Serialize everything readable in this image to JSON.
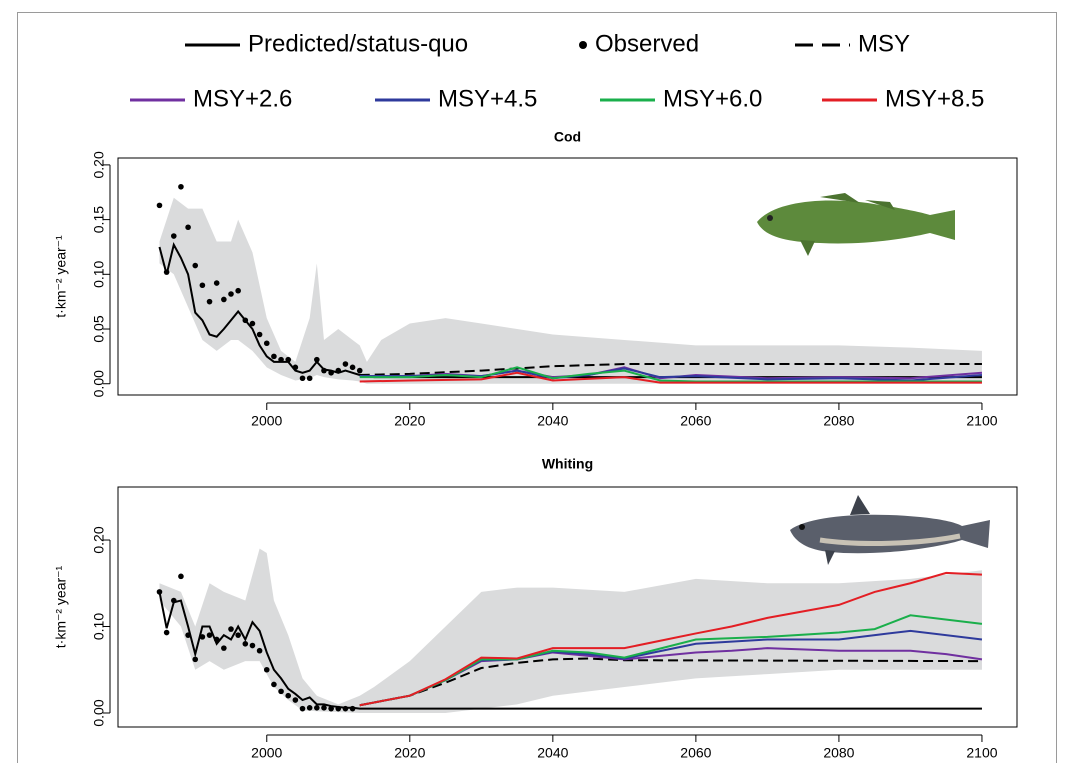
{
  "chart_data": [
    {
      "type": "line",
      "title": "Cod",
      "ylabel": "t·km⁻² year⁻¹",
      "xlim": [
        1979.2,
        2104.9
      ],
      "xticks": [
        2000,
        2020,
        2040,
        2060,
        2080,
        2100
      ],
      "ylim": [
        -0.0103,
        0.2063
      ],
      "yticks": [
        {
          "value": 0,
          "label": "0.00"
        },
        {
          "value": 0.05,
          "label": "0.05"
        },
        {
          "value": 0.1,
          "label": "0.10"
        },
        {
          "value": 0.15,
          "label": "0.15"
        },
        {
          "value": 0.2,
          "label": "0.20"
        }
      ],
      "band": {
        "color": "#dadbdc",
        "x": [
          1985,
          1987,
          1989,
          1991,
          1993,
          1995,
          1996,
          1998,
          2000,
          2002,
          2004,
          2006,
          2007,
          2008,
          2010,
          2012,
          2013,
          2014,
          2016,
          2020,
          2025,
          2030,
          2035,
          2040,
          2050,
          2060,
          2070,
          2080,
          2090,
          2100
        ],
        "upper": [
          0.13,
          0.17,
          0.16,
          0.16,
          0.13,
          0.13,
          0.15,
          0.12,
          0.06,
          0.03,
          0.02,
          0.06,
          0.11,
          0.04,
          0.05,
          0.04,
          0.035,
          0.02,
          0.04,
          0.055,
          0.06,
          0.055,
          0.05,
          0.045,
          0.04,
          0.035,
          0.035,
          0.035,
          0.033,
          0.03
        ],
        "lower": [
          0.11,
          0.1,
          0.07,
          0.04,
          0.03,
          0.04,
          0.04,
          0.03,
          0.015,
          0.008,
          0.003,
          0.005,
          0.008,
          0.006,
          0.004,
          0.003,
          0.002,
          0,
          0,
          0,
          0,
          0,
          0,
          0,
          0,
          0,
          0,
          0,
          0,
          0
        ]
      },
      "series": [
        {
          "name": "Predicted/status-quo",
          "color": "#000000",
          "style": "solid",
          "x": [
            1985,
            1986,
            1987,
            1988,
            1989,
            1990,
            1991,
            1992,
            1993,
            1994,
            1995,
            1996,
            1997,
            1998,
            1999,
            2000,
            2001,
            2002,
            2003,
            2004,
            2005,
            2006,
            2007,
            2008,
            2009,
            2010,
            2011,
            2012,
            2013,
            2015,
            2100
          ],
          "values": [
            0.125,
            0.1,
            0.127,
            0.115,
            0.1,
            0.065,
            0.058,
            0.045,
            0.043,
            0.05,
            0.058,
            0.066,
            0.058,
            0.05,
            0.035,
            0.025,
            0.02,
            0.02,
            0.02,
            0.012,
            0.01,
            0.012,
            0.02,
            0.013,
            0.012,
            0.01,
            0.012,
            0.01,
            0.008,
            0.006,
            0.006
          ]
        },
        {
          "name": "Observed",
          "color": "#000000",
          "style": "dots",
          "x": [
            1985,
            1986,
            1987,
            1988,
            1989,
            1990,
            1991,
            1992,
            1993,
            1994,
            1995,
            1996,
            1997,
            1998,
            1999,
            2000,
            2001,
            2002,
            2003,
            2004,
            2005,
            2006,
            2007,
            2008,
            2009,
            2010,
            2011,
            2012,
            2013
          ],
          "values": [
            0.163,
            0.102,
            0.135,
            0.18,
            0.143,
            0.108,
            0.09,
            0.075,
            0.092,
            0.077,
            0.082,
            0.085,
            0.058,
            0.055,
            0.045,
            0.037,
            0.025,
            0.022,
            0.022,
            0.015,
            0.005,
            0.005,
            0.022,
            0.012,
            0.01,
            0.012,
            0.018,
            0.015,
            0.012
          ]
        },
        {
          "name": "MSY",
          "color": "#000000",
          "style": "dashed",
          "x": [
            2013,
            2020,
            2030,
            2040,
            2050,
            2100
          ],
          "values": [
            0.008,
            0.009,
            0.012,
            0.016,
            0.018,
            0.018
          ]
        },
        {
          "name": "MSY+2.6",
          "color": "#7030a0",
          "style": "solid",
          "x": [
            2013,
            2020,
            2025,
            2030,
            2035,
            2040,
            2045,
            2050,
            2055,
            2060,
            2070,
            2080,
            2090,
            2100
          ],
          "values": [
            0.007,
            0.007,
            0.009,
            0.007,
            0.012,
            0.006,
            0.008,
            0.015,
            0.005,
            0.008,
            0.005,
            0.006,
            0.005,
            0.01
          ]
        },
        {
          "name": "MSY+4.5",
          "color": "#2e3a9c",
          "style": "solid",
          "x": [
            2013,
            2020,
            2025,
            2030,
            2035,
            2040,
            2045,
            2050,
            2055,
            2060,
            2070,
            2080,
            2090,
            2100
          ],
          "values": [
            0.007,
            0.007,
            0.008,
            0.007,
            0.012,
            0.005,
            0.008,
            0.014,
            0.006,
            0.007,
            0.004,
            0.005,
            0.003,
            0.008
          ]
        },
        {
          "name": "MSY+6.0",
          "color": "#1aaf4b",
          "style": "solid",
          "x": [
            2013,
            2020,
            2025,
            2030,
            2035,
            2040,
            2045,
            2050,
            2055,
            2060,
            2070,
            2080,
            2090,
            2100
          ],
          "values": [
            0.006,
            0.006,
            0.008,
            0.006,
            0.015,
            0.005,
            0.009,
            0.012,
            0.003,
            0.002,
            0.002,
            0.002,
            0.002,
            0.002
          ]
        },
        {
          "name": "MSY+8.5",
          "color": "#e31e24",
          "style": "solid",
          "x": [
            2013,
            2020,
            2030,
            2035,
            2040,
            2050,
            2055,
            2100
          ],
          "values": [
            0.002,
            0.003,
            0.004,
            0.01,
            0.003,
            0.006,
            0.001,
            0.001
          ]
        }
      ]
    },
    {
      "type": "line",
      "title": "Whiting",
      "ylabel": "t·km⁻² year⁻¹",
      "xlim": [
        1979.2,
        2104.9
      ],
      "xticks": [
        2000,
        2020,
        2040,
        2060,
        2080,
        2100
      ],
      "ylim": [
        -0.0162,
        0.2613
      ],
      "yticks": [
        {
          "value": 0,
          "label": "0.00"
        },
        {
          "value": 0.1,
          "label": "0.10"
        },
        {
          "value": 0.2,
          "label": "0.20"
        }
      ],
      "band": {
        "color": "#dadbdc",
        "x": [
          1985,
          1988,
          1990,
          1992,
          1994,
          1997,
          1999,
          2000,
          2001,
          2003,
          2005,
          2007,
          2010,
          2013,
          2015,
          2020,
          2025,
          2030,
          2035,
          2040,
          2050,
          2060,
          2070,
          2080,
          2090,
          2100
        ],
        "upper": [
          0.15,
          0.14,
          0.1,
          0.15,
          0.14,
          0.13,
          0.19,
          0.185,
          0.13,
          0.09,
          0.04,
          0.02,
          0.01,
          0.02,
          0.03,
          0.06,
          0.1,
          0.14,
          0.145,
          0.145,
          0.14,
          0.155,
          0.15,
          0.15,
          0.155,
          0.165
        ],
        "lower": [
          0.13,
          0.1,
          0.05,
          0.06,
          0.05,
          0.06,
          0.06,
          0.045,
          0.03,
          0.015,
          0.003,
          0.002,
          0.001,
          0,
          0,
          0,
          0,
          0.005,
          0.01,
          0.02,
          0.03,
          0.04,
          0.045,
          0.05,
          0.05,
          0.05
        ]
      },
      "series": [
        {
          "name": "Predicted/status-quo",
          "color": "#000000",
          "style": "solid",
          "x": [
            1985,
            1986,
            1987,
            1988,
            1989,
            1990,
            1991,
            1992,
            1993,
            1994,
            1995,
            1996,
            1997,
            1998,
            1999,
            2000,
            2001,
            2002,
            2003,
            2004,
            2005,
            2006,
            2007,
            2008,
            2009,
            2010,
            2011,
            2012,
            2013,
            2060,
            2100
          ],
          "values": [
            0.14,
            0.098,
            0.128,
            0.13,
            0.1,
            0.068,
            0.1,
            0.1,
            0.08,
            0.09,
            0.085,
            0.1,
            0.085,
            0.105,
            0.095,
            0.07,
            0.05,
            0.04,
            0.028,
            0.022,
            0.015,
            0.018,
            0.01,
            0.01,
            0.008,
            0.007,
            0.006,
            0.006,
            0.005,
            0.005,
            0.005
          ]
        },
        {
          "name": "Observed",
          "color": "#000000",
          "style": "dots",
          "x": [
            1985,
            1986,
            1987,
            1988,
            1989,
            1990,
            1991,
            1992,
            1993,
            1994,
            1995,
            1996,
            1997,
            1998,
            1999,
            2000,
            2001,
            2002,
            2003,
            2004,
            2005,
            2006,
            2007,
            2008,
            2009,
            2010,
            2011,
            2012
          ],
          "values": [
            0.14,
            0.093,
            0.13,
            0.158,
            0.09,
            0.062,
            0.088,
            0.09,
            0.085,
            0.075,
            0.097,
            0.09,
            0.08,
            0.078,
            0.072,
            0.05,
            0.033,
            0.025,
            0.02,
            0.015,
            0.005,
            0.006,
            0.006,
            0.006,
            0.005,
            0.005,
            0.005,
            0.005
          ]
        },
        {
          "name": "MSY",
          "color": "#000000",
          "style": "dashed",
          "x": [
            2013,
            2020,
            2025,
            2030,
            2035,
            2040,
            2045,
            2050,
            2100
          ],
          "values": [
            0.009,
            0.02,
            0.035,
            0.052,
            0.058,
            0.062,
            0.063,
            0.061,
            0.06
          ]
        },
        {
          "name": "MSY+2.6",
          "color": "#7030a0",
          "style": "solid",
          "x": [
            2013,
            2020,
            2025,
            2030,
            2035,
            2040,
            2045,
            2050,
            2055,
            2060,
            2065,
            2070,
            2080,
            2090,
            2095,
            2100
          ],
          "values": [
            0.009,
            0.02,
            0.038,
            0.06,
            0.062,
            0.07,
            0.066,
            0.062,
            0.066,
            0.07,
            0.072,
            0.075,
            0.072,
            0.072,
            0.068,
            0.062
          ]
        },
        {
          "name": "MSY+4.5",
          "color": "#2e3a9c",
          "style": "solid",
          "x": [
            2013,
            2020,
            2025,
            2030,
            2035,
            2040,
            2045,
            2050,
            2060,
            2070,
            2080,
            2090,
            2100
          ],
          "values": [
            0.009,
            0.02,
            0.038,
            0.061,
            0.062,
            0.071,
            0.068,
            0.063,
            0.08,
            0.085,
            0.085,
            0.095,
            0.085
          ]
        },
        {
          "name": "MSY+6.0",
          "color": "#1aaf4b",
          "style": "solid",
          "x": [
            2013,
            2020,
            2025,
            2030,
            2035,
            2040,
            2045,
            2050,
            2060,
            2070,
            2080,
            2085,
            2090,
            2100
          ],
          "values": [
            0.009,
            0.02,
            0.038,
            0.062,
            0.062,
            0.072,
            0.07,
            0.064,
            0.085,
            0.088,
            0.093,
            0.097,
            0.113,
            0.103
          ]
        },
        {
          "name": "MSY+8.5",
          "color": "#e31e24",
          "style": "solid",
          "x": [
            2013,
            2020,
            2025,
            2030,
            2035,
            2040,
            2050,
            2060,
            2065,
            2070,
            2080,
            2085,
            2090,
            2095,
            2100
          ],
          "values": [
            0.009,
            0.02,
            0.039,
            0.064,
            0.063,
            0.075,
            0.075,
            0.092,
            0.1,
            0.11,
            0.125,
            0.14,
            0.15,
            0.162,
            0.16
          ]
        }
      ]
    }
  ]
}
